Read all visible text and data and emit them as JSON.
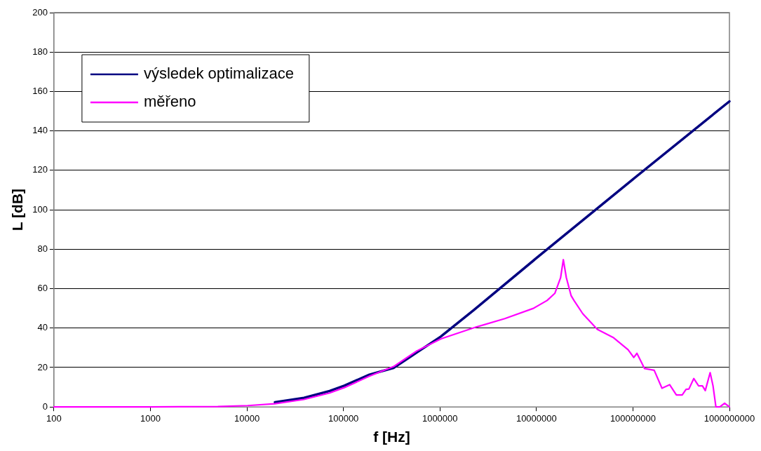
{
  "chart_data": {
    "type": "line",
    "xlabel": "f [Hz]",
    "ylabel": "L [dB]",
    "log": "x",
    "xlim": [
      100,
      1000000000
    ],
    "xticks": [
      100,
      1000,
      10000,
      100000,
      1000000,
      10000000,
      100000000,
      1000000000
    ],
    "ylim": [
      0,
      200
    ],
    "yticks": [
      0,
      20,
      40,
      60,
      80,
      100,
      120,
      140,
      160,
      180,
      200
    ],
    "grid": "y",
    "legend": "top left",
    "marker": "none",
    "line_style": "solid",
    "series": [
      {
        "name": "výsledek optimalizace",
        "color": "#000080",
        "x": [
          19500,
          39000,
          72000,
          102000,
          186000,
          331000,
          575000,
          1020000,
          2240000,
          10000000,
          100000000,
          1000000000
        ],
        "values": [
          2.4,
          4.6,
          8.1,
          10.8,
          16.4,
          19.8,
          27.6,
          35.7,
          49.1,
          75.5,
          115.5,
          155
        ]
      },
      {
        "name": "měřeno",
        "color": "#ff00ff",
        "x": [
          100,
          1000,
          5000,
          10200,
          19500,
          39000,
          72000,
          102000,
          186000,
          331000,
          575000,
          1020000,
          1150000,
          2400000,
          4700000,
          9300000,
          12900000,
          15500000,
          17800000,
          19000000,
          20400000,
          22900000,
          24500000,
          30200000,
          42700000,
          63100000,
          89100000,
          102000000,
          110000000,
          132000000,
          166000000,
          200000000,
          240000000,
          282000000,
          324000000,
          355000000,
          380000000,
          427000000,
          479000000,
          525000000,
          562000000,
          631000000,
          676000000,
          724000000,
          794000000,
          891000000,
          1000000000
        ],
        "values": [
          0,
          0,
          0.2,
          0.7,
          1.6,
          3.8,
          7.1,
          9.8,
          15.6,
          20.5,
          28.4,
          34.5,
          35.4,
          40.6,
          44.8,
          50,
          54,
          57.6,
          65.6,
          74.7,
          65.6,
          56.4,
          54,
          47.3,
          39.4,
          35.1,
          29,
          25.1,
          27.2,
          19.5,
          18.6,
          9.5,
          11.3,
          6.1,
          6.1,
          8.9,
          9.1,
          14.4,
          10.7,
          10.7,
          8.3,
          17.4,
          10.7,
          0,
          0,
          1.9,
          0
        ]
      }
    ]
  }
}
